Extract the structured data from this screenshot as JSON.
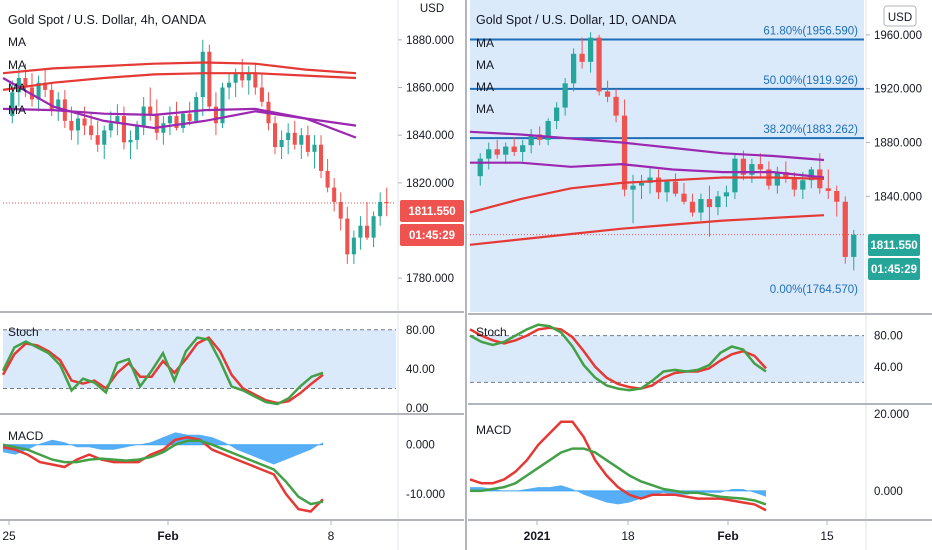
{
  "colors": {
    "up": "#26a69a",
    "down": "#ef5350",
    "ma_red": "#e53935",
    "ma_purple": "#9c27b0",
    "fib": "#1e6fb8",
    "stoch_k": "#43a047",
    "stoch_d": "#e53935",
    "macd_hist": "#42a5f5",
    "panel_bg": "#dbeafb",
    "price_tag_red": "#ef5350",
    "price_tag_teal": "#26a69a"
  },
  "chart_data": [
    {
      "type": "candlestick",
      "title": "Gold Spot / U.S. Dollar, 4h, OANDA",
      "currency": "USD",
      "ma_labels": [
        "MA",
        "MA",
        "MA",
        "MA"
      ],
      "ylim": [
        1770,
        1890
      ],
      "yticks": [
        "1880.000",
        "1860.000",
        "1840.000",
        "1820.000",
        "1780.000"
      ],
      "xticks": [
        {
          "label": "25",
          "bold": false
        },
        {
          "label": "Feb",
          "bold": true
        },
        {
          "label": "8",
          "bold": false
        }
      ],
      "last_price": "1811.550",
      "countdown": "01:45:29",
      "ohlc": [
        [
          1848,
          1863,
          1845,
          1858
        ],
        [
          1858,
          1868,
          1852,
          1864
        ],
        [
          1864,
          1870,
          1856,
          1860
        ],
        [
          1860,
          1866,
          1852,
          1855
        ],
        [
          1855,
          1865,
          1850,
          1862
        ],
        [
          1862,
          1868,
          1856,
          1859
        ],
        [
          1859,
          1862,
          1848,
          1851
        ],
        [
          1851,
          1858,
          1846,
          1855
        ],
        [
          1855,
          1859,
          1843,
          1846
        ],
        [
          1846,
          1852,
          1838,
          1842
        ],
        [
          1842,
          1850,
          1836,
          1847
        ],
        [
          1847,
          1852,
          1840,
          1844
        ],
        [
          1844,
          1849,
          1838,
          1840
        ],
        [
          1840,
          1846,
          1833,
          1836
        ],
        [
          1836,
          1844,
          1830,
          1842
        ],
        [
          1842,
          1850,
          1839,
          1845
        ],
        [
          1845,
          1853,
          1840,
          1848
        ],
        [
          1848,
          1852,
          1834,
          1837
        ],
        [
          1837,
          1842,
          1830,
          1838
        ],
        [
          1838,
          1846,
          1834,
          1844
        ],
        [
          1844,
          1856,
          1840,
          1852
        ],
        [
          1852,
          1860,
          1846,
          1849
        ],
        [
          1849,
          1855,
          1838,
          1841
        ],
        [
          1841,
          1848,
          1836,
          1845
        ],
        [
          1845,
          1852,
          1840,
          1848
        ],
        [
          1848,
          1854,
          1842,
          1843
        ],
        [
          1843,
          1850,
          1841,
          1849
        ],
        [
          1849,
          1854,
          1844,
          1846
        ],
        [
          1846,
          1858,
          1845,
          1856
        ],
        [
          1856,
          1880,
          1848,
          1875
        ],
        [
          1875,
          1878,
          1850,
          1852
        ],
        [
          1852,
          1858,
          1840,
          1845
        ],
        [
          1845,
          1862,
          1843,
          1860
        ],
        [
          1860,
          1866,
          1855,
          1862
        ],
        [
          1862,
          1868,
          1856,
          1866
        ],
        [
          1866,
          1872,
          1860,
          1863
        ],
        [
          1863,
          1869,
          1857,
          1866
        ],
        [
          1866,
          1870,
          1857,
          1860
        ],
        [
          1860,
          1866,
          1852,
          1854
        ],
        [
          1854,
          1858,
          1842,
          1845
        ],
        [
          1845,
          1848,
          1832,
          1835
        ],
        [
          1835,
          1842,
          1830,
          1838
        ],
        [
          1838,
          1845,
          1832,
          1841
        ],
        [
          1841,
          1846,
          1834,
          1836
        ],
        [
          1836,
          1843,
          1830,
          1840
        ],
        [
          1840,
          1844,
          1831,
          1833
        ],
        [
          1833,
          1840,
          1826,
          1836
        ],
        [
          1836,
          1840,
          1822,
          1825
        ],
        [
          1825,
          1830,
          1816,
          1818
        ],
        [
          1818,
          1822,
          1808,
          1812
        ],
        [
          1812,
          1816,
          1800,
          1805
        ],
        [
          1805,
          1810,
          1786,
          1790
        ],
        [
          1790,
          1800,
          1786,
          1797
        ],
        [
          1797,
          1806,
          1792,
          1802
        ],
        [
          1802,
          1812,
          1796,
          1797
        ],
        [
          1797,
          1808,
          1793,
          1806
        ],
        [
          1806,
          1816,
          1802,
          1812
        ],
        [
          1812,
          1818,
          1806,
          1811.55
        ]
      ],
      "ma_series": [
        {
          "color": "red",
          "values": [
            1866,
            1868,
            1869,
            1870,
            1870.5,
            1870,
            1867.5,
            1866
          ]
        },
        {
          "color": "red",
          "values": [
            1859,
            1862,
            1864,
            1865.5,
            1866,
            1866,
            1865,
            1864
          ]
        },
        {
          "color": "purple",
          "values": [
            1864,
            1852,
            1846,
            1843,
            1846,
            1850,
            1847,
            1844
          ]
        },
        {
          "color": "purple",
          "values": [
            1851,
            1850.5,
            1849,
            1848.5,
            1850.5,
            1851,
            1847,
            1839
          ]
        }
      ],
      "stoch": {
        "label": "Stoch",
        "ylim": [
          0,
          90
        ],
        "band": [
          20,
          80
        ],
        "yticks": [
          "80.00",
          "40.00",
          "0.00"
        ],
        "k": [
          38,
          62,
          68,
          62,
          56,
          44,
          18,
          30,
          26,
          16,
          46,
          50,
          22,
          38,
          56,
          28,
          58,
          72,
          70,
          48,
          22,
          18,
          12,
          6,
          4,
          10,
          22,
          32,
          36
        ],
        "d": [
          34,
          55,
          66,
          64,
          58,
          49,
          28,
          25,
          28,
          20,
          36,
          46,
          32,
          32,
          48,
          36,
          50,
          66,
          72,
          58,
          34,
          20,
          14,
          8,
          5,
          7,
          15,
          25,
          34
        ]
      },
      "macd": {
        "label": "MACD",
        "ylim": [
          -14,
          5
        ],
        "yticks": [
          "0.000",
          "-10.000"
        ],
        "hist": [
          -1.5,
          -2,
          -1,
          0.2,
          1,
          0.5,
          -0.5,
          -0.5,
          -1,
          -1,
          -0.5,
          0,
          0.5,
          1.5,
          2.5,
          2,
          2,
          1.5,
          0.5,
          -1,
          -2,
          -3,
          -4,
          -3,
          -2,
          -1,
          0.5
        ],
        "macd_line": [
          -0.5,
          -1,
          -2,
          -3.5,
          -4,
          -4.5,
          -3,
          -2,
          -3,
          -3.5,
          -3.5,
          -3.5,
          -2,
          -1,
          1,
          1.5,
          1,
          -1,
          -2,
          -3,
          -4,
          -5,
          -6,
          -10,
          -13,
          -13.5,
          -11
        ],
        "signal_line": [
          0,
          -0.5,
          -1,
          -2,
          -3,
          -3.5,
          -3.5,
          -3,
          -2.8,
          -3,
          -3.2,
          -3,
          -2.5,
          -1.5,
          0,
          0.8,
          0.8,
          0,
          -1,
          -2,
          -3,
          -4,
          -5,
          -7.5,
          -10.5,
          -12,
          -11.5
        ]
      }
    },
    {
      "type": "candlestick",
      "title": "Gold Spot / U.S. Dollar, 1D, OANDA",
      "currency": "USD",
      "ma_labels": [
        "MA",
        "MA",
        "MA",
        "MA"
      ],
      "ylim": [
        1760,
        1980
      ],
      "yticks": [
        "1960.000",
        "1920.000",
        "1880.000",
        "1840.000"
      ],
      "xticks": [
        {
          "label": "2021",
          "bold": true
        },
        {
          "label": "18",
          "bold": false
        },
        {
          "label": "Feb",
          "bold": true
        },
        {
          "label": "15",
          "bold": false
        }
      ],
      "fib_levels": [
        {
          "label": "61.80%(1956.590)",
          "price": 1956.59
        },
        {
          "label": "50.00%(1919.926)",
          "price": 1919.926
        },
        {
          "label": "38.20%(1883.262)",
          "price": 1883.262
        },
        {
          "label": "0.00%(1764.570)",
          "price": 1764.57
        }
      ],
      "last_price": "1811.550",
      "countdown": "01:45:29",
      "ohlc": [
        [
          1855,
          1872,
          1848,
          1868
        ],
        [
          1868,
          1880,
          1860,
          1875
        ],
        [
          1875,
          1882,
          1868,
          1871
        ],
        [
          1871,
          1880,
          1864,
          1877
        ],
        [
          1877,
          1884,
          1870,
          1873
        ],
        [
          1873,
          1882,
          1866,
          1878
        ],
        [
          1878,
          1890,
          1872,
          1886
        ],
        [
          1886,
          1892,
          1878,
          1882
        ],
        [
          1882,
          1898,
          1878,
          1896
        ],
        [
          1896,
          1910,
          1890,
          1906
        ],
        [
          1906,
          1928,
          1900,
          1924
        ],
        [
          1924,
          1950,
          1918,
          1946
        ],
        [
          1946,
          1958,
          1935,
          1940
        ],
        [
          1940,
          1962,
          1932,
          1958
        ],
        [
          1958,
          1960,
          1915,
          1918
        ],
        [
          1918,
          1926,
          1910,
          1914
        ],
        [
          1914,
          1920,
          1895,
          1900
        ],
        [
          1900,
          1912,
          1840,
          1845
        ],
        [
          1845,
          1856,
          1820,
          1848
        ],
        [
          1848,
          1856,
          1838,
          1850
        ],
        [
          1850,
          1862,
          1842,
          1854
        ],
        [
          1854,
          1860,
          1838,
          1843
        ],
        [
          1843,
          1852,
          1836,
          1851
        ],
        [
          1851,
          1857,
          1840,
          1842
        ],
        [
          1842,
          1850,
          1834,
          1836
        ],
        [
          1836,
          1842,
          1825,
          1828
        ],
        [
          1828,
          1842,
          1822,
          1838
        ],
        [
          1838,
          1848,
          1810,
          1832
        ],
        [
          1832,
          1844,
          1826,
          1840
        ],
        [
          1840,
          1848,
          1832,
          1843
        ],
        [
          1843,
          1872,
          1838,
          1868
        ],
        [
          1868,
          1874,
          1852,
          1856
        ],
        [
          1856,
          1868,
          1850,
          1864
        ],
        [
          1864,
          1872,
          1854,
          1860
        ],
        [
          1860,
          1866,
          1845,
          1848
        ],
        [
          1848,
          1862,
          1842,
          1858
        ],
        [
          1858,
          1866,
          1850,
          1854
        ],
        [
          1854,
          1858,
          1840,
          1845
        ],
        [
          1845,
          1858,
          1838,
          1852
        ],
        [
          1852,
          1862,
          1846,
          1860
        ],
        [
          1860,
          1872,
          1842,
          1846
        ],
        [
          1846,
          1860,
          1838,
          1844
        ],
        [
          1844,
          1848,
          1825,
          1836
        ],
        [
          1836,
          1840,
          1790,
          1795
        ],
        [
          1795,
          1815,
          1785,
          1811.55
        ]
      ],
      "ma_series": [
        {
          "color": "purple",
          "values": [
            1888,
            1886,
            1883,
            1880,
            1876,
            1872,
            1870,
            1867
          ]
        },
        {
          "color": "purple",
          "values": [
            1865,
            1865,
            1862,
            1864,
            1860,
            1858,
            1858,
            1854
          ]
        },
        {
          "color": "red",
          "values": [
            1828,
            1838,
            1846,
            1850,
            1852,
            1854,
            1854,
            1853
          ]
        },
        {
          "color": "red",
          "values": [
            1804,
            1808,
            1812,
            1816,
            1819,
            1822,
            1824,
            1826
          ]
        }
      ],
      "stoch": {
        "label": "Stoch",
        "ylim": [
          0,
          100
        ],
        "band": [
          20,
          80
        ],
        "yticks": [
          "80.00",
          "40.00"
        ],
        "k": [
          80,
          72,
          68,
          72,
          80,
          88,
          94,
          92,
          84,
          66,
          42,
          26,
          16,
          12,
          10,
          12,
          22,
          34,
          36,
          34,
          36,
          42,
          58,
          66,
          62,
          44,
          34
        ],
        "d": [
          88,
          80,
          74,
          70,
          74,
          80,
          88,
          90,
          88,
          78,
          60,
          40,
          26,
          18,
          14,
          12,
          16,
          26,
          32,
          34,
          34,
          38,
          48,
          56,
          60,
          54,
          38
        ]
      },
      "macd": {
        "label": "MACD",
        "ylim": [
          -6,
          20
        ],
        "yticks": [
          "20.000",
          "0.000"
        ],
        "hist": [
          1,
          1,
          0.5,
          0,
          0,
          0.5,
          1,
          1,
          1.5,
          0.5,
          -1,
          -2,
          -3,
          -3.5,
          -3,
          -2,
          -1,
          -0.5,
          -1,
          -1,
          -0.5,
          -0.5,
          -0.5,
          0.5,
          0.5,
          -0.5,
          -1.5
        ],
        "macd_line": [
          3,
          2,
          2,
          3,
          5,
          8,
          12,
          15,
          18,
          18,
          14,
          8,
          4,
          1,
          -1,
          -2,
          -1,
          -1,
          -1,
          -1.5,
          -2,
          -2,
          -2,
          -2.5,
          -3,
          -3.5,
          -5
        ],
        "signal_line": [
          0,
          0,
          0.5,
          1,
          2,
          4,
          6,
          8,
          10,
          11,
          11,
          10,
          8,
          6,
          4,
          2.5,
          1.5,
          0.5,
          0,
          -0.5,
          -0.5,
          -1,
          -1.5,
          -1.8,
          -2,
          -2.5,
          -3.5
        ]
      }
    }
  ]
}
